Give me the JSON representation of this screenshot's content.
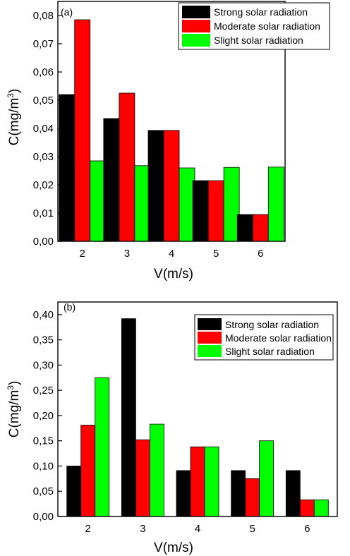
{
  "colors": {
    "strong": "#000000",
    "moderate": "#ff0000",
    "slight": "#00ff00"
  },
  "chart_data": [
    {
      "type": "bar",
      "panel_label": "(a)",
      "xlabel": "V(m/s)",
      "ylabel": "C(mg/m",
      "ylabel_sup": "3",
      "ylabel_end": ")",
      "categories": [
        "2",
        "3",
        "4",
        "5",
        "6"
      ],
      "ylim": [
        0,
        0.085
      ],
      "yticks": [
        0,
        0.01,
        0.02,
        0.03,
        0.04,
        0.05,
        0.06,
        0.07,
        0.08
      ],
      "ytick_labels": [
        "0,00",
        "0,01",
        "0,02",
        "0,03",
        "0,04",
        "0,05",
        "0,06",
        "0,07",
        "0,08"
      ],
      "legend_position": "top-right",
      "grid": false,
      "series": [
        {
          "name": "Strong solar radiation",
          "values": [
            0.052,
            0.0435,
            0.0393,
            0.0215,
            0.0095
          ]
        },
        {
          "name": "Moderate solar radiation",
          "values": [
            0.0785,
            0.0525,
            0.0393,
            0.0215,
            0.0095
          ]
        },
        {
          "name": "Slight solar radiation",
          "values": [
            0.0285,
            0.0268,
            0.026,
            0.0262,
            0.0263
          ]
        }
      ]
    },
    {
      "type": "bar",
      "panel_label": "(b)",
      "xlabel": "V(m/s)",
      "ylabel": "C(mg/m",
      "ylabel_sup": "3",
      "ylabel_end": ")",
      "categories": [
        "2",
        "3",
        "4",
        "5",
        "6"
      ],
      "ylim": [
        0,
        0.425
      ],
      "yticks": [
        0,
        0.05,
        0.1,
        0.15,
        0.2,
        0.25,
        0.3,
        0.35,
        0.4
      ],
      "ytick_labels": [
        "0,00",
        "0,05",
        "0,10",
        "0,15",
        "0,20",
        "0,25",
        "0,30",
        "0,35",
        "0,40"
      ],
      "legend_position": "top-right",
      "grid": false,
      "series": [
        {
          "name": "Strong solar radiation",
          "values": [
            0.1,
            0.392,
            0.091,
            0.091,
            0.091
          ]
        },
        {
          "name": "Moderate solar radiation",
          "values": [
            0.181,
            0.152,
            0.138,
            0.075,
            0.033
          ]
        },
        {
          "name": "Slight solar radiation",
          "values": [
            0.275,
            0.183,
            0.138,
            0.15,
            0.033
          ]
        }
      ]
    }
  ]
}
